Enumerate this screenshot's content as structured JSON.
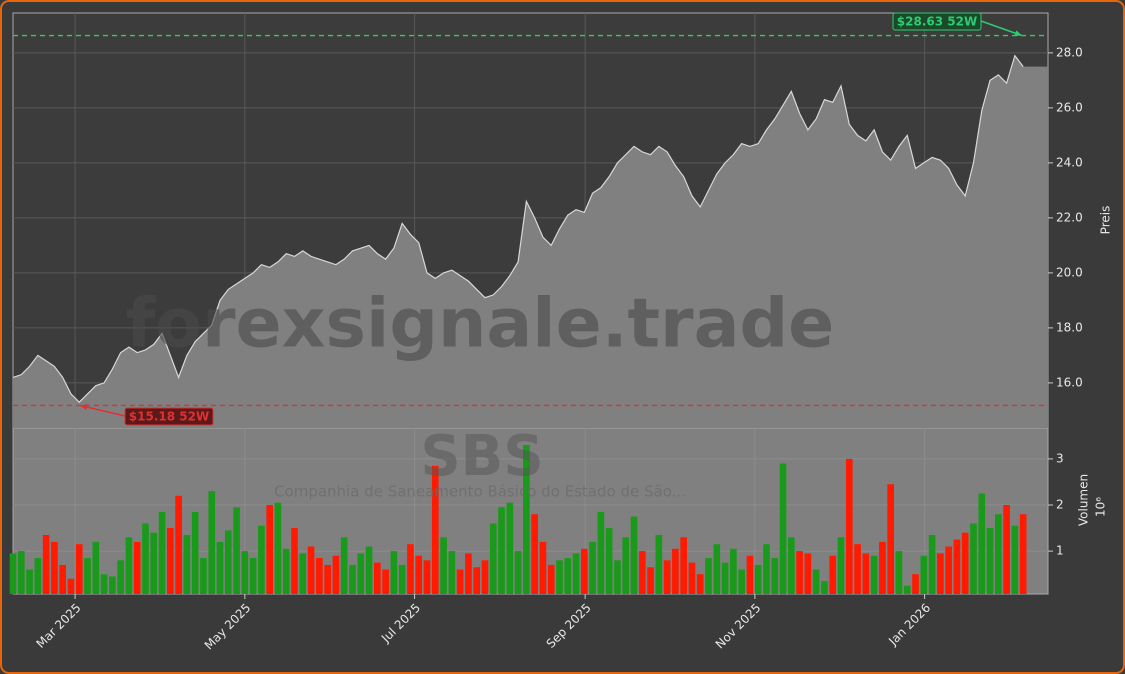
{
  "watermark": {
    "site": "forexsignale.trade",
    "ticker": "SBS",
    "company": "Companhia de Saneamento Básico do Estado de São..."
  },
  "chart_data": [
    {
      "type": "area",
      "y_label": "Preis",
      "color": "#808080",
      "line_color": "#d8d8d8",
      "values": [
        16.2,
        16.3,
        16.6,
        17.0,
        16.8,
        16.6,
        16.2,
        15.6,
        15.3,
        15.6,
        15.9,
        16.0,
        16.5,
        17.1,
        17.3,
        17.1,
        17.2,
        17.4,
        17.8,
        17.0,
        16.2,
        17.0,
        17.5,
        17.8,
        18.1,
        19.0,
        19.4,
        19.6,
        19.8,
        20.0,
        20.3,
        20.2,
        20.4,
        20.7,
        20.6,
        20.8,
        20.6,
        20.5,
        20.4,
        20.3,
        20.5,
        20.8,
        20.9,
        21.0,
        20.7,
        20.5,
        20.9,
        21.8,
        21.4,
        21.1,
        20.0,
        19.8,
        20.0,
        20.1,
        19.9,
        19.7,
        19.4,
        19.1,
        19.2,
        19.5,
        19.9,
        20.4,
        22.6,
        22.0,
        21.3,
        21.0,
        21.6,
        22.1,
        22.3,
        22.2,
        22.9,
        23.1,
        23.5,
        24.0,
        24.3,
        24.6,
        24.4,
        24.3,
        24.6,
        24.4,
        23.9,
        23.5,
        22.8,
        22.4,
        23.0,
        23.6,
        24.0,
        24.3,
        24.7,
        24.6,
        24.7,
        25.2,
        25.6,
        26.1,
        26.6,
        25.8,
        25.2,
        25.6,
        26.3,
        26.2,
        26.8,
        25.4,
        25.0,
        24.8,
        25.2,
        24.4,
        24.1,
        24.6,
        25.0,
        23.8,
        24.0,
        24.2,
        24.1,
        23.8,
        23.2,
        22.8,
        24.0,
        25.9,
        27.0,
        27.2,
        26.9,
        27.9,
        27.5
      ],
      "ylim": [
        14.36,
        29.45
      ],
      "yticks": [
        {
          "value": 16,
          "label": "16.0"
        },
        {
          "value": 18,
          "label": "18.0"
        },
        {
          "value": 20,
          "label": "20.0"
        },
        {
          "value": 22,
          "label": "22.0"
        },
        {
          "value": 24,
          "label": "24.0"
        },
        {
          "value": 26,
          "label": "26.0"
        },
        {
          "value": 28,
          "label": "28.0"
        }
      ],
      "grid": true,
      "annotations": [
        {
          "text": "$28.63 52W",
          "value": 28.63,
          "color": "#2ecc71"
        },
        {
          "text": "$15.18 52W",
          "value": 15.18,
          "color": "#e03030"
        }
      ]
    },
    {
      "type": "bar",
      "y_label": "Volumen",
      "y_unit": "10⁶",
      "up_color": "#1a9a1a",
      "down_color": "#ff1a00",
      "values": [
        0.95,
        1.0,
        0.6,
        0.85,
        1.35,
        1.2,
        0.7,
        0.4,
        1.15,
        0.85,
        1.2,
        0.5,
        0.45,
        0.8,
        1.3,
        1.2,
        1.6,
        1.4,
        1.85,
        1.5,
        2.2,
        1.35,
        1.85,
        0.85,
        2.3,
        1.2,
        1.45,
        1.95,
        1.0,
        0.85,
        1.55,
        2.0,
        2.05,
        1.05,
        1.5,
        0.95,
        1.1,
        0.85,
        0.7,
        0.9,
        1.3,
        0.7,
        0.95,
        1.1,
        0.75,
        0.6,
        1.0,
        0.7,
        1.15,
        0.9,
        0.8,
        2.85,
        1.3,
        1.0,
        0.6,
        0.95,
        0.65,
        0.8,
        1.6,
        1.95,
        2.05,
        1.0,
        3.3,
        1.8,
        1.2,
        0.7,
        0.8,
        0.85,
        0.95,
        1.05,
        1.2,
        1.85,
        1.5,
        0.8,
        1.3,
        1.75,
        1.0,
        0.65,
        1.35,
        0.8,
        1.05,
        1.3,
        0.75,
        0.5,
        0.85,
        1.15,
        0.75,
        1.05,
        0.6,
        0.9,
        0.7,
        1.15,
        0.85,
        2.9,
        1.3,
        1.0,
        0.95,
        0.6,
        0.35,
        0.9,
        1.3,
        3.0,
        1.15,
        0.95,
        0.9,
        1.2,
        2.45,
        1.0,
        0.25,
        0.5,
        0.9,
        1.35,
        0.95,
        1.1,
        1.25,
        1.4,
        1.6,
        2.25,
        1.5,
        1.8,
        2.0,
        1.55,
        1.8
      ],
      "ylim": [
        0.07,
        3.67
      ],
      "yticks": [
        1,
        2,
        3
      ],
      "xlim": [
        0,
        125
      ],
      "xticks": [
        {
          "value": 7.5,
          "label": "Mar 2025"
        },
        {
          "value": 28,
          "label": "May 2025"
        },
        {
          "value": 48.5,
          "label": "Jul 2025"
        },
        {
          "value": 69.1,
          "label": "Sep 2025"
        },
        {
          "value": 89.6,
          "label": "Nov 2025"
        },
        {
          "value": 110.1,
          "label": "Jan 2026"
        }
      ]
    }
  ]
}
